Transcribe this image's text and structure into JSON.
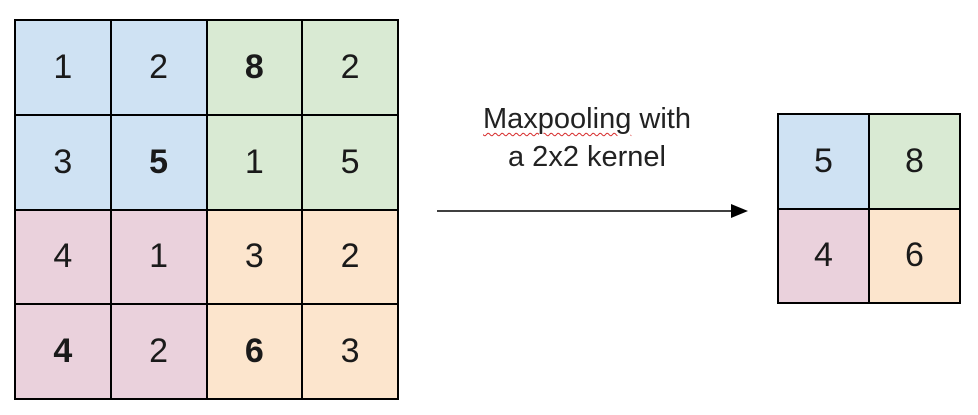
{
  "colors": {
    "blue": "#cfe2f3",
    "green": "#d9ead3",
    "pink": "#ead1dc",
    "orange": "#fce5cd",
    "border": "#000000"
  },
  "input": {
    "rows": [
      [
        {
          "v": "1",
          "c": "blue"
        },
        {
          "v": "2",
          "c": "blue"
        },
        {
          "v": "8",
          "c": "green",
          "bold": true
        },
        {
          "v": "2",
          "c": "green"
        }
      ],
      [
        {
          "v": "3",
          "c": "blue"
        },
        {
          "v": "5",
          "c": "blue",
          "bold": true
        },
        {
          "v": "1",
          "c": "green"
        },
        {
          "v": "5",
          "c": "green"
        }
      ],
      [
        {
          "v": "4",
          "c": "pink"
        },
        {
          "v": "1",
          "c": "pink"
        },
        {
          "v": "3",
          "c": "orange"
        },
        {
          "v": "2",
          "c": "orange"
        }
      ],
      [
        {
          "v": "4",
          "c": "pink",
          "bold": true
        },
        {
          "v": "2",
          "c": "pink"
        },
        {
          "v": "6",
          "c": "orange",
          "bold": true
        },
        {
          "v": "3",
          "c": "orange"
        }
      ]
    ]
  },
  "caption": {
    "word1": "Maxpooling",
    "rest1": " with",
    "line2": "a 2x2 kernel"
  },
  "output": {
    "rows": [
      [
        {
          "v": "5",
          "c": "blue"
        },
        {
          "v": "8",
          "c": "green"
        }
      ],
      [
        {
          "v": "4",
          "c": "pink"
        },
        {
          "v": "6",
          "c": "orange"
        }
      ]
    ]
  }
}
